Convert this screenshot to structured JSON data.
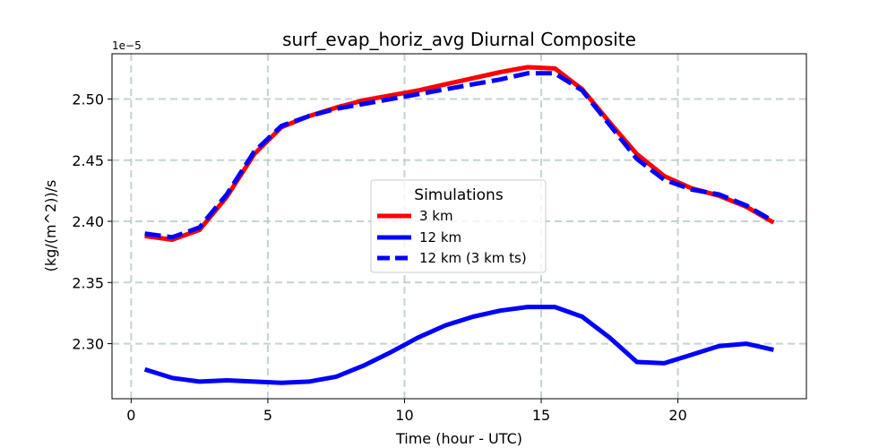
{
  "chart_data": {
    "type": "line",
    "title": "surf_evap_horiz_avg Diurnal Composite",
    "xlabel": "Time (hour - UTC)",
    "ylabel": "(kg/(m^2))/s",
    "y_offset_label": "1e−5",
    "xlim": [
      -0.7,
      24.7
    ],
    "ylim": [
      2.255,
      2.537
    ],
    "xticks": [
      0,
      5,
      10,
      15,
      20
    ],
    "xtick_labels": [
      "0",
      "5",
      "10",
      "15",
      "20"
    ],
    "yticks": [
      2.3,
      2.35,
      2.4,
      2.45,
      2.5
    ],
    "ytick_labels": [
      "2.30",
      "2.35",
      "2.40",
      "2.45",
      "2.50"
    ],
    "grid": true,
    "legend": {
      "title": "Simulations",
      "position": "center"
    },
    "x": [
      0.5,
      1.5,
      2.5,
      3.5,
      4.5,
      5.5,
      6.5,
      7.5,
      8.5,
      9.5,
      10.5,
      11.5,
      12.5,
      13.5,
      14.5,
      15.5,
      16.5,
      17.5,
      18.5,
      19.5,
      20.5,
      21.5,
      22.5,
      23.5
    ],
    "series": [
      {
        "name": "3 km",
        "color": "#ff0000",
        "style": "solid",
        "values": [
          2.388,
          2.385,
          2.393,
          2.42,
          2.455,
          2.477,
          2.486,
          2.493,
          2.499,
          2.503,
          2.507,
          2.512,
          2.517,
          2.522,
          2.526,
          2.525,
          2.508,
          2.481,
          2.455,
          2.437,
          2.427,
          2.421,
          2.412,
          2.399
        ]
      },
      {
        "name": "12 km",
        "color": "#0000ff",
        "style": "solid",
        "values": [
          2.279,
          2.272,
          2.269,
          2.27,
          2.269,
          2.268,
          2.269,
          2.273,
          2.282,
          2.293,
          2.305,
          2.315,
          2.322,
          2.327,
          2.33,
          2.33,
          2.322,
          2.305,
          2.285,
          2.284,
          2.291,
          2.298,
          2.3,
          2.295
        ]
      },
      {
        "name": "12 km (3 km ts)",
        "color": "#0000ff",
        "style": "dashed",
        "values": [
          2.39,
          2.387,
          2.395,
          2.422,
          2.457,
          2.478,
          2.486,
          2.492,
          2.496,
          2.5,
          2.504,
          2.508,
          2.512,
          2.516,
          2.521,
          2.521,
          2.507,
          2.479,
          2.451,
          2.434,
          2.426,
          2.422,
          2.413,
          2.4
        ]
      }
    ]
  }
}
